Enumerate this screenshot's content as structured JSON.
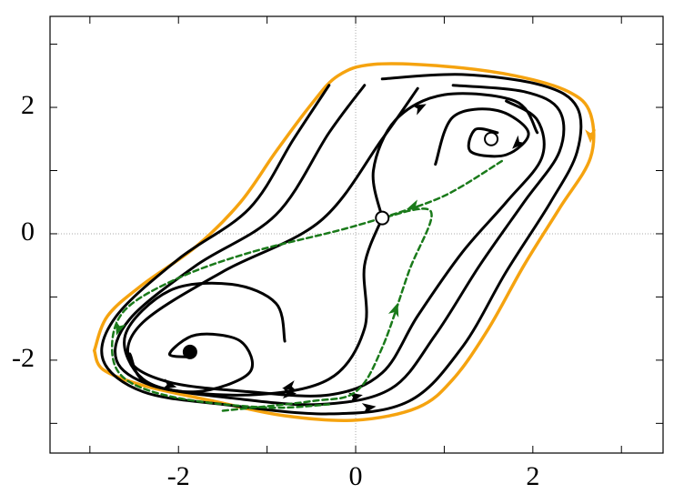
{
  "chart_data": {
    "type": "line",
    "xlim": [
      -3.45,
      3.47
    ],
    "ylim": [
      -3.47,
      3.44
    ],
    "xticks": [
      -2,
      0,
      2
    ],
    "yticks": [
      -2,
      0,
      2
    ],
    "xminor": [
      -3,
      -1,
      1,
      3
    ],
    "yminor": [
      -3,
      -1,
      1,
      3
    ],
    "zero_lines": true,
    "series": [
      {
        "color": "#f5a30f",
        "style": "solid",
        "linewidth": 3.5,
        "x": [
          -2.95,
          -2.8,
          -2.4,
          -1.8,
          -1.3,
          -0.9,
          -0.5,
          -0.2,
          0.2,
          1,
          1.8,
          2.4,
          2.65,
          2.65,
          2.3,
          1.9,
          1.5,
          1.1,
          0.7,
          0,
          -0.8,
          -1.6,
          -2.4,
          -2.85,
          -2.95
        ],
        "values": [
          -1.85,
          -1.3,
          -0.8,
          -0.2,
          0.5,
          1.3,
          2.05,
          2.5,
          2.68,
          2.65,
          2.5,
          2.25,
          1.9,
          1.2,
          0.4,
          -0.5,
          -1.5,
          -2.3,
          -2.75,
          -2.95,
          -2.88,
          -2.65,
          -2.4,
          -2.15,
          -1.85
        ]
      },
      {
        "color": "#000000",
        "style": "solid",
        "linewidth": 3,
        "x": [
          -0.3,
          -0.7,
          -1.2,
          -2,
          -2.7,
          -2.85,
          -2.4,
          -1.5,
          -0.3,
          0.6,
          1.2,
          1.7,
          2.2,
          2.5,
          2.5,
          2.1,
          1.2,
          0.3
        ],
        "values": [
          2.35,
          1.5,
          0.4,
          -0.4,
          -1.3,
          -2,
          -2.5,
          -2.7,
          -2.85,
          -2.65,
          -1.8,
          -0.6,
          0.5,
          1.3,
          2,
          2.35,
          2.52,
          2.45
        ]
      },
      {
        "color": "#000000",
        "style": "solid",
        "linewidth": 3,
        "x": [
          0.1,
          -0.3,
          -0.9,
          -1.8,
          -2.55,
          -2.7,
          -2.3,
          -1.4,
          -0.4,
          0.4,
          0.9,
          1.4,
          1.9,
          2.3,
          2.3,
          1.9,
          1.1
        ],
        "values": [
          2.35,
          1.6,
          0.3,
          -0.5,
          -1.35,
          -2,
          -2.4,
          -2.6,
          -2.7,
          -2.45,
          -1.6,
          -0.5,
          0.5,
          1.3,
          1.95,
          2.25,
          2.35
        ]
      },
      {
        "color": "#000000",
        "style": "solid",
        "linewidth": 3,
        "x": [
          0.7,
          0.3,
          -0.4,
          -1.5,
          -2.4,
          -2.55,
          -2.1,
          -1.2,
          -0.3,
          0.3,
          0.7,
          1.2,
          1.7,
          2.1,
          2.05,
          1.7
        ],
        "values": [
          2.3,
          1.5,
          0.2,
          -0.6,
          -1.4,
          -2,
          -2.35,
          -2.5,
          -2.55,
          -2.2,
          -1.3,
          -0.3,
          0.5,
          1.2,
          1.8,
          2.1
        ]
      },
      {
        "color": "#000000",
        "style": "solid",
        "linewidth": 3,
        "x": [
          -0.8,
          -0.9,
          -1.4,
          -2.1,
          -2.6,
          -2.4,
          -1.8,
          -1.2,
          -1.3,
          -1.8,
          -2.1,
          -1.87
        ],
        "values": [
          -1.7,
          -1.1,
          -0.8,
          -0.9,
          -1.6,
          -2.3,
          -2.5,
          -2.2,
          -1.7,
          -1.6,
          -1.9,
          -1.95
        ]
      },
      {
        "color": "#000000",
        "style": "solid",
        "linewidth": 3,
        "x": [
          0.9,
          1.1,
          1.6,
          1.95,
          1.7,
          1.3,
          1.35,
          1.6
        ],
        "values": [
          1.1,
          1.85,
          1.95,
          1.6,
          1.25,
          1.3,
          1.65,
          1.6
        ]
      },
      {
        "color": "#000000",
        "style": "solid",
        "linewidth": 3,
        "x": [
          0.3,
          0.2,
          0.45,
          1,
          1.8,
          2.05
        ],
        "values": [
          0.25,
          1,
          1.8,
          2.2,
          2.1,
          1.6
        ]
      },
      {
        "color": "#000000",
        "style": "solid",
        "linewidth": 3,
        "x": [
          0.3,
          0.1,
          0.1,
          -0.3,
          -1.2,
          -2.3,
          -2.55
        ],
        "values": [
          0.25,
          -0.5,
          -1.5,
          -2.3,
          -2.55,
          -2.4,
          -1.9
        ]
      },
      {
        "color": "#1a7a1a",
        "style": "dashed",
        "linewidth": 2.5,
        "x": [
          0.3,
          -0.2,
          -1.2,
          -2,
          -2.6,
          -2.75,
          -2.6,
          -2,
          -1,
          -0.3
        ],
        "values": [
          0.25,
          0.05,
          -0.3,
          -0.7,
          -1.2,
          -1.8,
          -2.3,
          -2.6,
          -2.75,
          -2.7
        ]
      },
      {
        "color": "#1a7a1a",
        "style": "dashed",
        "linewidth": 2.5,
        "x": [
          1.65,
          1,
          0.3
        ],
        "values": [
          1.15,
          0.6,
          0.25
        ]
      },
      {
        "color": "#1a7a1a",
        "style": "dashed",
        "linewidth": 2.5,
        "x": [
          -1.5,
          -0.5,
          0,
          0.3,
          0.6,
          0.85,
          0.3
        ],
        "values": [
          -2.8,
          -2.65,
          -2.5,
          -1.8,
          -0.6,
          0.35,
          0.25
        ]
      }
    ],
    "points": {
      "x": [
        -1.87,
        0.3,
        1.53
      ],
      "values": [
        -1.87,
        0.25,
        1.5
      ],
      "fills": [
        "#000000",
        "#ffffff",
        "#ffffff"
      ]
    }
  }
}
